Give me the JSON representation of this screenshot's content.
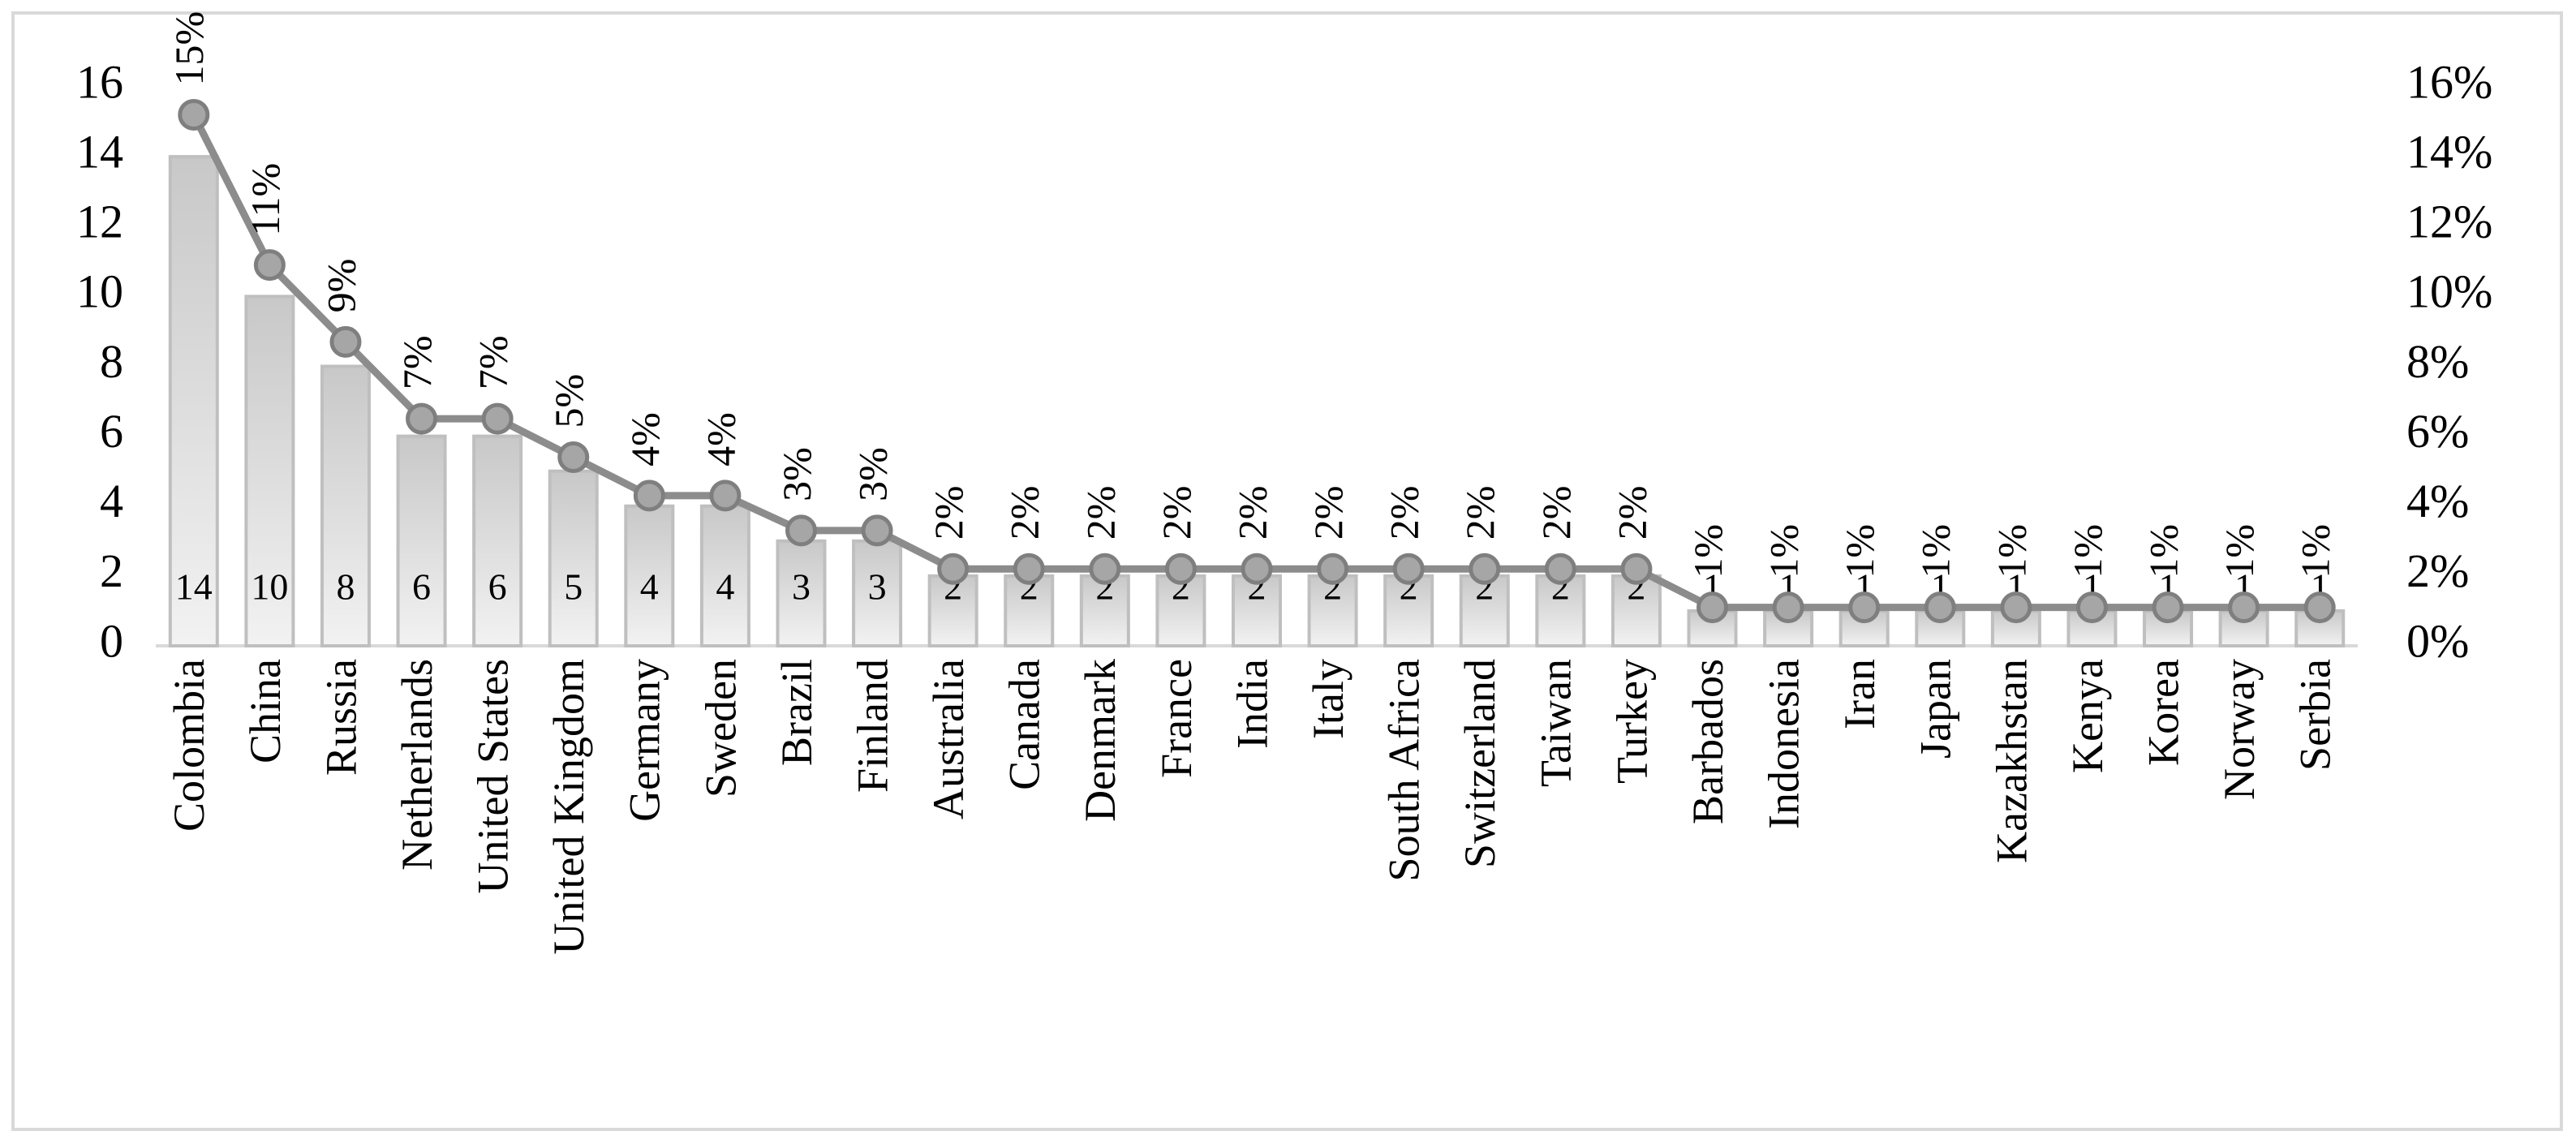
{
  "chart_data": {
    "type": "combo",
    "categories": [
      "Colombia",
      "China",
      "Russia",
      "Netherlands",
      "United States",
      "United Kingdom",
      "Germany",
      "Sweden",
      "Brazil",
      "Finland",
      "Australia",
      "Canada",
      "Denmark",
      "France",
      "India",
      "Italy",
      "South Africa",
      "Switzerland",
      "Taiwan",
      "Turkey",
      "Barbados",
      "Indonesia",
      "Iran",
      "Japan",
      "Kazakhstan",
      "Kenya",
      "Korea",
      "Norway",
      "Serbia"
    ],
    "series": [
      {
        "type": "bar",
        "color": "#d9d9d9",
        "values": [
          14,
          10,
          8,
          6,
          6,
          5,
          4,
          4,
          3,
          3,
          2,
          2,
          2,
          2,
          2,
          2,
          2,
          2,
          2,
          2,
          1,
          1,
          1,
          1,
          1,
          1,
          1,
          1,
          1
        ]
      },
      {
        "type": "line",
        "axis": "y2",
        "color": "#8c8c8c",
        "values": [
          15.2,
          10.9,
          8.7,
          6.5,
          6.5,
          5.4,
          4.3,
          4.3,
          3.3,
          3.3,
          2.2,
          2.2,
          2.2,
          2.2,
          2.2,
          2.2,
          2.2,
          2.2,
          2.2,
          2.2,
          1.1,
          1.1,
          1.1,
          1.1,
          1.1,
          1.1,
          1.1,
          1.1,
          1.1
        ],
        "value_labels": [
          "15%",
          "11%",
          "9%",
          "7%",
          "7%",
          "5%",
          "4%",
          "4%",
          "3%",
          "3%",
          "2%",
          "2%",
          "2%",
          "2%",
          "2%",
          "2%",
          "2%",
          "2%",
          "2%",
          "2%",
          "1%",
          "1%",
          "1%",
          "1%",
          "1%",
          "1%",
          "1%",
          "1%",
          "1%"
        ]
      }
    ],
    "ylim": [
      0,
      16
    ],
    "yticks": [
      0,
      2,
      4,
      6,
      8,
      10,
      12,
      14,
      16
    ],
    "y2lim": [
      0,
      16
    ],
    "y2ticks": [
      {
        "value": 0,
        "label": "0%"
      },
      {
        "value": 2,
        "label": "2%"
      },
      {
        "value": 4,
        "label": "4%"
      },
      {
        "value": 6,
        "label": "6%"
      },
      {
        "value": 8,
        "label": "8%"
      },
      {
        "value": 10,
        "label": "10%"
      },
      {
        "value": 12,
        "label": "12%"
      },
      {
        "value": 14,
        "label": "14%"
      },
      {
        "value": 16,
        "label": "16%"
      }
    ],
    "grid": false
  }
}
